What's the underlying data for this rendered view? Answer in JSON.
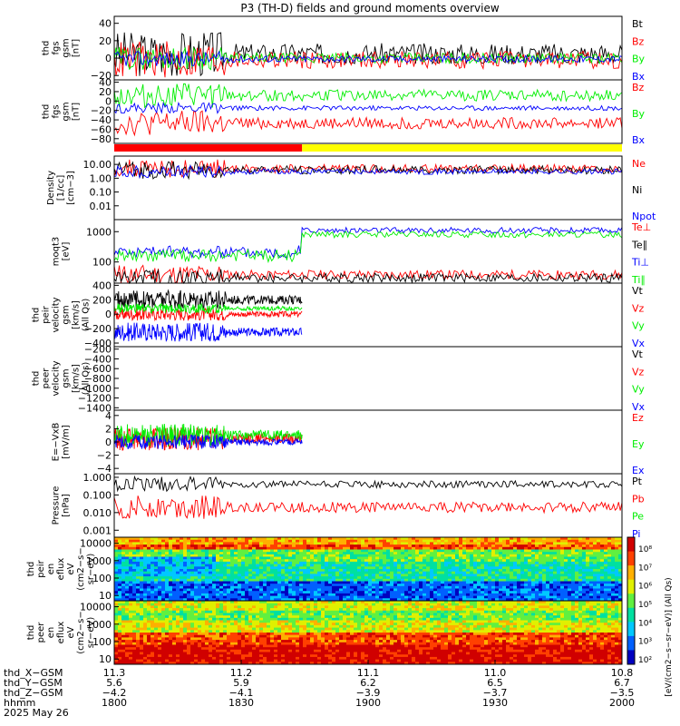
{
  "title": "P3 (TH-D) fields and ground moments overview",
  "colors": {
    "black": "#000000",
    "red": "#ff0000",
    "green": "#00ee00",
    "blue": "#0000ff",
    "bar_red": "#ff0000",
    "bar_yellow": "#ffff00"
  },
  "chart_data": [
    {
      "type": "line",
      "ylabel": [
        "thd",
        "fgs",
        "gsm",
        "[nT]"
      ],
      "ylim": [
        -25,
        48
      ],
      "yticks": [
        "40",
        "20",
        "0",
        "−20"
      ],
      "ytick_values": [
        40,
        20,
        0,
        -20
      ],
      "legend": [
        {
          "name": "Bt",
          "color": "black",
          "base": 5,
          "amp": 12
        },
        {
          "name": "Bz",
          "color": "red",
          "base": -2,
          "amp": 10
        },
        {
          "name": "By",
          "color": "green",
          "base": 0,
          "amp": 6
        },
        {
          "name": "Bx",
          "color": "blue",
          "base": -1,
          "amp": 4
        }
      ]
    },
    {
      "type": "line",
      "ylabel": [
        "thd",
        "fgs",
        "gsm",
        "[nT]"
      ],
      "ylim": [
        -90,
        45
      ],
      "yticks": [
        "40",
        "20",
        "0",
        "−20",
        "−40",
        "−60",
        "−80"
      ],
      "ytick_values": [
        40,
        20,
        0,
        -20,
        -40,
        -60,
        -80
      ],
      "legend": [
        {
          "name": "Bz",
          "color": "red",
          "base": -47,
          "amp": 12
        },
        {
          "name": "By",
          "color": "green",
          "base": 12,
          "amp": 12
        },
        {
          "name": "Bx",
          "color": "blue",
          "base": -15,
          "amp": 5
        }
      ]
    },
    {
      "type": "line",
      "scale": "log",
      "ylabel": [
        "Density",
        "[1/cc]",
        "[cm−3]"
      ],
      "ylim": [
        0.001,
        40
      ],
      "yticks": [
        "10.00",
        "1.00",
        "0.10",
        "0.01"
      ],
      "ytick_values": [
        10,
        1,
        0.1,
        0.01
      ],
      "legend": [
        {
          "name": "Ne",
          "color": "red",
          "base": 5,
          "amp": 0.3
        },
        {
          "name": "Ni",
          "color": "black",
          "base": 4,
          "amp": 0.3
        },
        {
          "name": "Npot",
          "color": "blue",
          "base": 3,
          "amp": 0.2
        }
      ]
    },
    {
      "type": "line",
      "scale": "log",
      "ylabel": [
        "moqt3",
        "[eV]"
      ],
      "ylim": [
        20,
        2500
      ],
      "yticks": [
        "1000",
        "100"
      ],
      "ytick_values": [
        1000,
        100
      ],
      "legend": [
        {
          "name": "Te⊥",
          "color": "red",
          "base": 38,
          "amp": 0.15
        },
        {
          "name": "Te∥",
          "color": "black",
          "base": 30,
          "amp": 0.15
        },
        {
          "name": "Ti⊥",
          "color": "blue",
          "base": 1100,
          "amp": 0.1
        },
        {
          "name": "Ti∥",
          "color": "green",
          "base": 800,
          "amp": 0.1
        }
      ]
    },
    {
      "type": "line",
      "ylabel": [
        "thd",
        "peir",
        "velocity",
        "gsm",
        "[km/s]",
        "(All Qs)"
      ],
      "ylim": [
        -450,
        430
      ],
      "yticks": [
        "400",
        "200",
        "0",
        "−200",
        "−400"
      ],
      "ytick_values": [
        400,
        200,
        0,
        -200,
        -400
      ],
      "legend": [
        {
          "name": "Vt",
          "color": "black",
          "base": 200,
          "amp": 60
        },
        {
          "name": "Vz",
          "color": "red",
          "base": 0,
          "amp": 40
        },
        {
          "name": "Vy",
          "color": "green",
          "base": 80,
          "amp": 30
        },
        {
          "name": "Vx",
          "color": "blue",
          "base": -250,
          "amp": 60
        }
      ]
    },
    {
      "type": "line",
      "ylabel": [
        "thd",
        "peer",
        "velocity",
        "gsm",
        "[km/s]",
        "(All Qs)"
      ],
      "ylim": [
        -1450,
        -150
      ],
      "yticks": [
        "−200",
        "−400",
        "−600",
        "−800",
        "−1000",
        "−1200",
        "−1400"
      ],
      "ytick_values": [
        -200,
        -400,
        -600,
        -800,
        -1000,
        -1200,
        -1400
      ],
      "legend": [
        {
          "name": "Vt",
          "color": "black"
        },
        {
          "name": "Vz",
          "color": "red"
        },
        {
          "name": "Vy",
          "color": "green"
        },
        {
          "name": "Vx",
          "color": "blue"
        }
      ]
    },
    {
      "type": "line",
      "ylabel": [
        "E=−VxB",
        "[mV/m]"
      ],
      "ylim": [
        -4.8,
        4.8
      ],
      "yticks": [
        "4",
        "2",
        "0",
        "−2",
        "−4"
      ],
      "ytick_values": [
        4,
        2,
        0,
        -2,
        -4
      ],
      "legend": [
        {
          "name": "Ez",
          "color": "red",
          "base": 0.5,
          "amp": 0.8
        },
        {
          "name": "Ey",
          "color": "green",
          "base": 1,
          "amp": 0.8
        },
        {
          "name": "Ex",
          "color": "blue",
          "base": 0,
          "amp": 0.5
        }
      ]
    },
    {
      "type": "line",
      "scale": "log",
      "ylabel": [
        "Pressure",
        "[nPa]"
      ],
      "ylim": [
        0.0004,
        1.6
      ],
      "yticks": [
        "1.000",
        "0.100",
        "0.010",
        "0.001"
      ],
      "ytick_values": [
        1,
        0.1,
        0.01,
        0.001
      ],
      "legend": [
        {
          "name": "Pt",
          "color": "black",
          "base": 0.4,
          "amp": 0.2
        },
        {
          "name": "Pb",
          "color": "red",
          "base": 0.02,
          "amp": 0.3
        },
        {
          "name": "Pe",
          "color": "green"
        },
        {
          "name": "Pi",
          "color": "blue"
        }
      ]
    },
    {
      "type": "heatmap",
      "scale": "log",
      "ylabel": [
        "thd",
        "peir",
        "en",
        "eflux",
        "eV",
        "(cm2−s−",
        "sr−eV)"
      ],
      "ylim": [
        5,
        22000
      ],
      "yticks": [
        "10000",
        "1000",
        "100",
        "10"
      ],
      "ytick_values": [
        10000,
        1000,
        100,
        10
      ]
    },
    {
      "type": "heatmap",
      "scale": "log",
      "ylabel": [
        "thd",
        "peer",
        "en",
        "eflux",
        "eV",
        "(cm2−s−",
        "sr−eV)"
      ],
      "ylim": [
        5,
        22000
      ],
      "yticks": [
        "10000",
        "1000",
        "100",
        "10"
      ],
      "ytick_values": [
        10000,
        1000,
        100,
        10
      ]
    }
  ],
  "colorbar": {
    "ticks": [
      "10⁸",
      "10⁷",
      "10⁶",
      "10⁵",
      "10⁴",
      "10³",
      "10²"
    ],
    "label": "[eV/(cm2−s−sr−eV)] (All Qs)"
  },
  "xaxis": {
    "rows": [
      "thd_X−GSM",
      "thd_Y−GSM",
      "thd_Z−GSM",
      "hhmm",
      "2025 May 26"
    ],
    "columns": [
      [
        "11.3",
        "5.6",
        "−4.2",
        "1800"
      ],
      [
        "11.2",
        "5.9",
        "−4.1",
        "1830"
      ],
      [
        "11.1",
        "6.2",
        "−3.9",
        "1900"
      ],
      [
        "11.0",
        "6.5",
        "−3.7",
        "1930"
      ],
      [
        "10.8",
        "6.7",
        "−3.5",
        "2000"
      ]
    ]
  }
}
